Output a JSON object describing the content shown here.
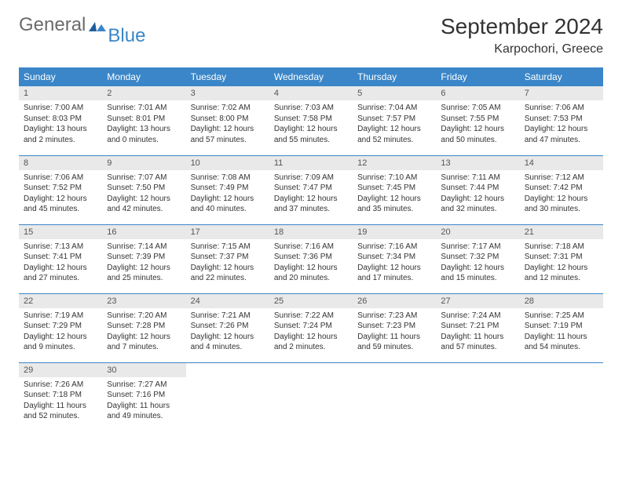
{
  "brand": {
    "left": "General",
    "right": "Blue"
  },
  "title": "September 2024",
  "location": "Karpochori, Greece",
  "dow": [
    "Sunday",
    "Monday",
    "Tuesday",
    "Wednesday",
    "Thursday",
    "Friday",
    "Saturday"
  ],
  "colors": {
    "header_bg": "#3a86c8",
    "header_text": "#ffffff",
    "daynum_bg": "#e9e9e9",
    "rule": "#3a86c8",
    "logo_gray": "#6b6b6b",
    "logo_blue": "#3a86c8"
  },
  "days": [
    {
      "n": "1",
      "sr": "Sunrise: 7:00 AM",
      "ss": "Sunset: 8:03 PM",
      "dl": "Daylight: 13 hours and 2 minutes."
    },
    {
      "n": "2",
      "sr": "Sunrise: 7:01 AM",
      "ss": "Sunset: 8:01 PM",
      "dl": "Daylight: 13 hours and 0 minutes."
    },
    {
      "n": "3",
      "sr": "Sunrise: 7:02 AM",
      "ss": "Sunset: 8:00 PM",
      "dl": "Daylight: 12 hours and 57 minutes."
    },
    {
      "n": "4",
      "sr": "Sunrise: 7:03 AM",
      "ss": "Sunset: 7:58 PM",
      "dl": "Daylight: 12 hours and 55 minutes."
    },
    {
      "n": "5",
      "sr": "Sunrise: 7:04 AM",
      "ss": "Sunset: 7:57 PM",
      "dl": "Daylight: 12 hours and 52 minutes."
    },
    {
      "n": "6",
      "sr": "Sunrise: 7:05 AM",
      "ss": "Sunset: 7:55 PM",
      "dl": "Daylight: 12 hours and 50 minutes."
    },
    {
      "n": "7",
      "sr": "Sunrise: 7:06 AM",
      "ss": "Sunset: 7:53 PM",
      "dl": "Daylight: 12 hours and 47 minutes."
    },
    {
      "n": "8",
      "sr": "Sunrise: 7:06 AM",
      "ss": "Sunset: 7:52 PM",
      "dl": "Daylight: 12 hours and 45 minutes."
    },
    {
      "n": "9",
      "sr": "Sunrise: 7:07 AM",
      "ss": "Sunset: 7:50 PM",
      "dl": "Daylight: 12 hours and 42 minutes."
    },
    {
      "n": "10",
      "sr": "Sunrise: 7:08 AM",
      "ss": "Sunset: 7:49 PM",
      "dl": "Daylight: 12 hours and 40 minutes."
    },
    {
      "n": "11",
      "sr": "Sunrise: 7:09 AM",
      "ss": "Sunset: 7:47 PM",
      "dl": "Daylight: 12 hours and 37 minutes."
    },
    {
      "n": "12",
      "sr": "Sunrise: 7:10 AM",
      "ss": "Sunset: 7:45 PM",
      "dl": "Daylight: 12 hours and 35 minutes."
    },
    {
      "n": "13",
      "sr": "Sunrise: 7:11 AM",
      "ss": "Sunset: 7:44 PM",
      "dl": "Daylight: 12 hours and 32 minutes."
    },
    {
      "n": "14",
      "sr": "Sunrise: 7:12 AM",
      "ss": "Sunset: 7:42 PM",
      "dl": "Daylight: 12 hours and 30 minutes."
    },
    {
      "n": "15",
      "sr": "Sunrise: 7:13 AM",
      "ss": "Sunset: 7:41 PM",
      "dl": "Daylight: 12 hours and 27 minutes."
    },
    {
      "n": "16",
      "sr": "Sunrise: 7:14 AM",
      "ss": "Sunset: 7:39 PM",
      "dl": "Daylight: 12 hours and 25 minutes."
    },
    {
      "n": "17",
      "sr": "Sunrise: 7:15 AM",
      "ss": "Sunset: 7:37 PM",
      "dl": "Daylight: 12 hours and 22 minutes."
    },
    {
      "n": "18",
      "sr": "Sunrise: 7:16 AM",
      "ss": "Sunset: 7:36 PM",
      "dl": "Daylight: 12 hours and 20 minutes."
    },
    {
      "n": "19",
      "sr": "Sunrise: 7:16 AM",
      "ss": "Sunset: 7:34 PM",
      "dl": "Daylight: 12 hours and 17 minutes."
    },
    {
      "n": "20",
      "sr": "Sunrise: 7:17 AM",
      "ss": "Sunset: 7:32 PM",
      "dl": "Daylight: 12 hours and 15 minutes."
    },
    {
      "n": "21",
      "sr": "Sunrise: 7:18 AM",
      "ss": "Sunset: 7:31 PM",
      "dl": "Daylight: 12 hours and 12 minutes."
    },
    {
      "n": "22",
      "sr": "Sunrise: 7:19 AM",
      "ss": "Sunset: 7:29 PM",
      "dl": "Daylight: 12 hours and 9 minutes."
    },
    {
      "n": "23",
      "sr": "Sunrise: 7:20 AM",
      "ss": "Sunset: 7:28 PM",
      "dl": "Daylight: 12 hours and 7 minutes."
    },
    {
      "n": "24",
      "sr": "Sunrise: 7:21 AM",
      "ss": "Sunset: 7:26 PM",
      "dl": "Daylight: 12 hours and 4 minutes."
    },
    {
      "n": "25",
      "sr": "Sunrise: 7:22 AM",
      "ss": "Sunset: 7:24 PM",
      "dl": "Daylight: 12 hours and 2 minutes."
    },
    {
      "n": "26",
      "sr": "Sunrise: 7:23 AM",
      "ss": "Sunset: 7:23 PM",
      "dl": "Daylight: 11 hours and 59 minutes."
    },
    {
      "n": "27",
      "sr": "Sunrise: 7:24 AM",
      "ss": "Sunset: 7:21 PM",
      "dl": "Daylight: 11 hours and 57 minutes."
    },
    {
      "n": "28",
      "sr": "Sunrise: 7:25 AM",
      "ss": "Sunset: 7:19 PM",
      "dl": "Daylight: 11 hours and 54 minutes."
    },
    {
      "n": "29",
      "sr": "Sunrise: 7:26 AM",
      "ss": "Sunset: 7:18 PM",
      "dl": "Daylight: 11 hours and 52 minutes."
    },
    {
      "n": "30",
      "sr": "Sunrise: 7:27 AM",
      "ss": "Sunset: 7:16 PM",
      "dl": "Daylight: 11 hours and 49 minutes."
    }
  ]
}
